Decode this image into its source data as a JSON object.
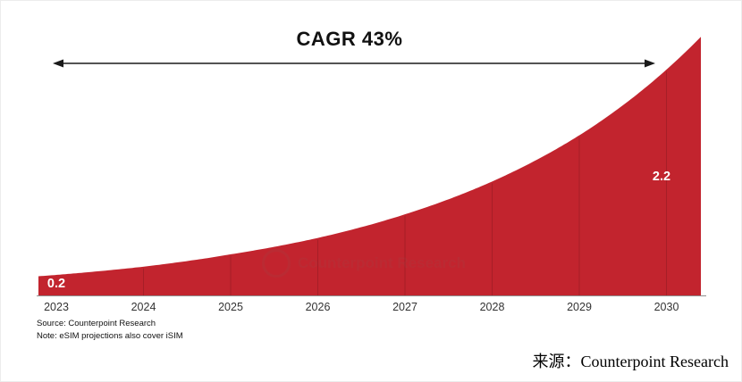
{
  "title": {
    "cagr_label": "CAGR 43%"
  },
  "chart_data": {
    "type": "area",
    "x": [
      "2023",
      "2024",
      "2025",
      "2026",
      "2027",
      "2028",
      "2029",
      "2030"
    ],
    "values": [
      0.2,
      0.28,
      0.4,
      0.56,
      0.79,
      1.11,
      1.56,
      2.2
    ],
    "first_label": "0.2",
    "last_label": "2.2",
    "annotation": "CAGR 43%",
    "title": "",
    "xlabel": "",
    "ylabel": "",
    "ylim": [
      0,
      2.6
    ],
    "grid": false,
    "legend": false,
    "area_color": "#c2242e",
    "axis_color": "#8f8f8f",
    "tick_color": "#333333",
    "label_color": "#ffffff"
  },
  "footer": {
    "source_line": "Source: Counterpoint Research",
    "note_line": "Note: eSIM projections also cover iSIM",
    "source_cn": "来源：Counterpoint Research"
  },
  "watermark": {
    "text": "Counterpoint Research"
  }
}
